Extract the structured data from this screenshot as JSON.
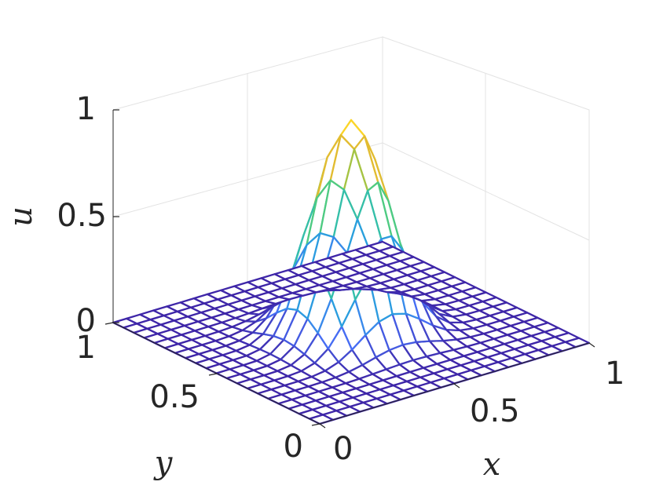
{
  "chart_data": {
    "type": "surface",
    "title": "",
    "xlabel": "x",
    "ylabel": "y",
    "zlabel": "u",
    "xlim": [
      0,
      1
    ],
    "ylim": [
      0,
      1
    ],
    "zlim": [
      0,
      1
    ],
    "x_ticks": [
      "0",
      "0.5",
      "1"
    ],
    "y_ticks": [
      "0",
      "0.5",
      "1"
    ],
    "z_ticks": [
      "0",
      "0.5",
      "1"
    ],
    "grid": true,
    "colormap": "parula",
    "mesh_size": [
      21,
      21
    ],
    "surface_function": "u = sin(πx)^8 · sin(πy)^8",
    "peak": {
      "x": 0.5,
      "y": 0.5,
      "u": 1
    },
    "colors": {
      "axis": "#262626",
      "grid": "#e3e3e3",
      "colormap_stops": [
        "#3e26a8",
        "#4772fa",
        "#1eb2d2",
        "#48cb86",
        "#c7c12a",
        "#fcb738",
        "#f9fb15"
      ]
    }
  }
}
